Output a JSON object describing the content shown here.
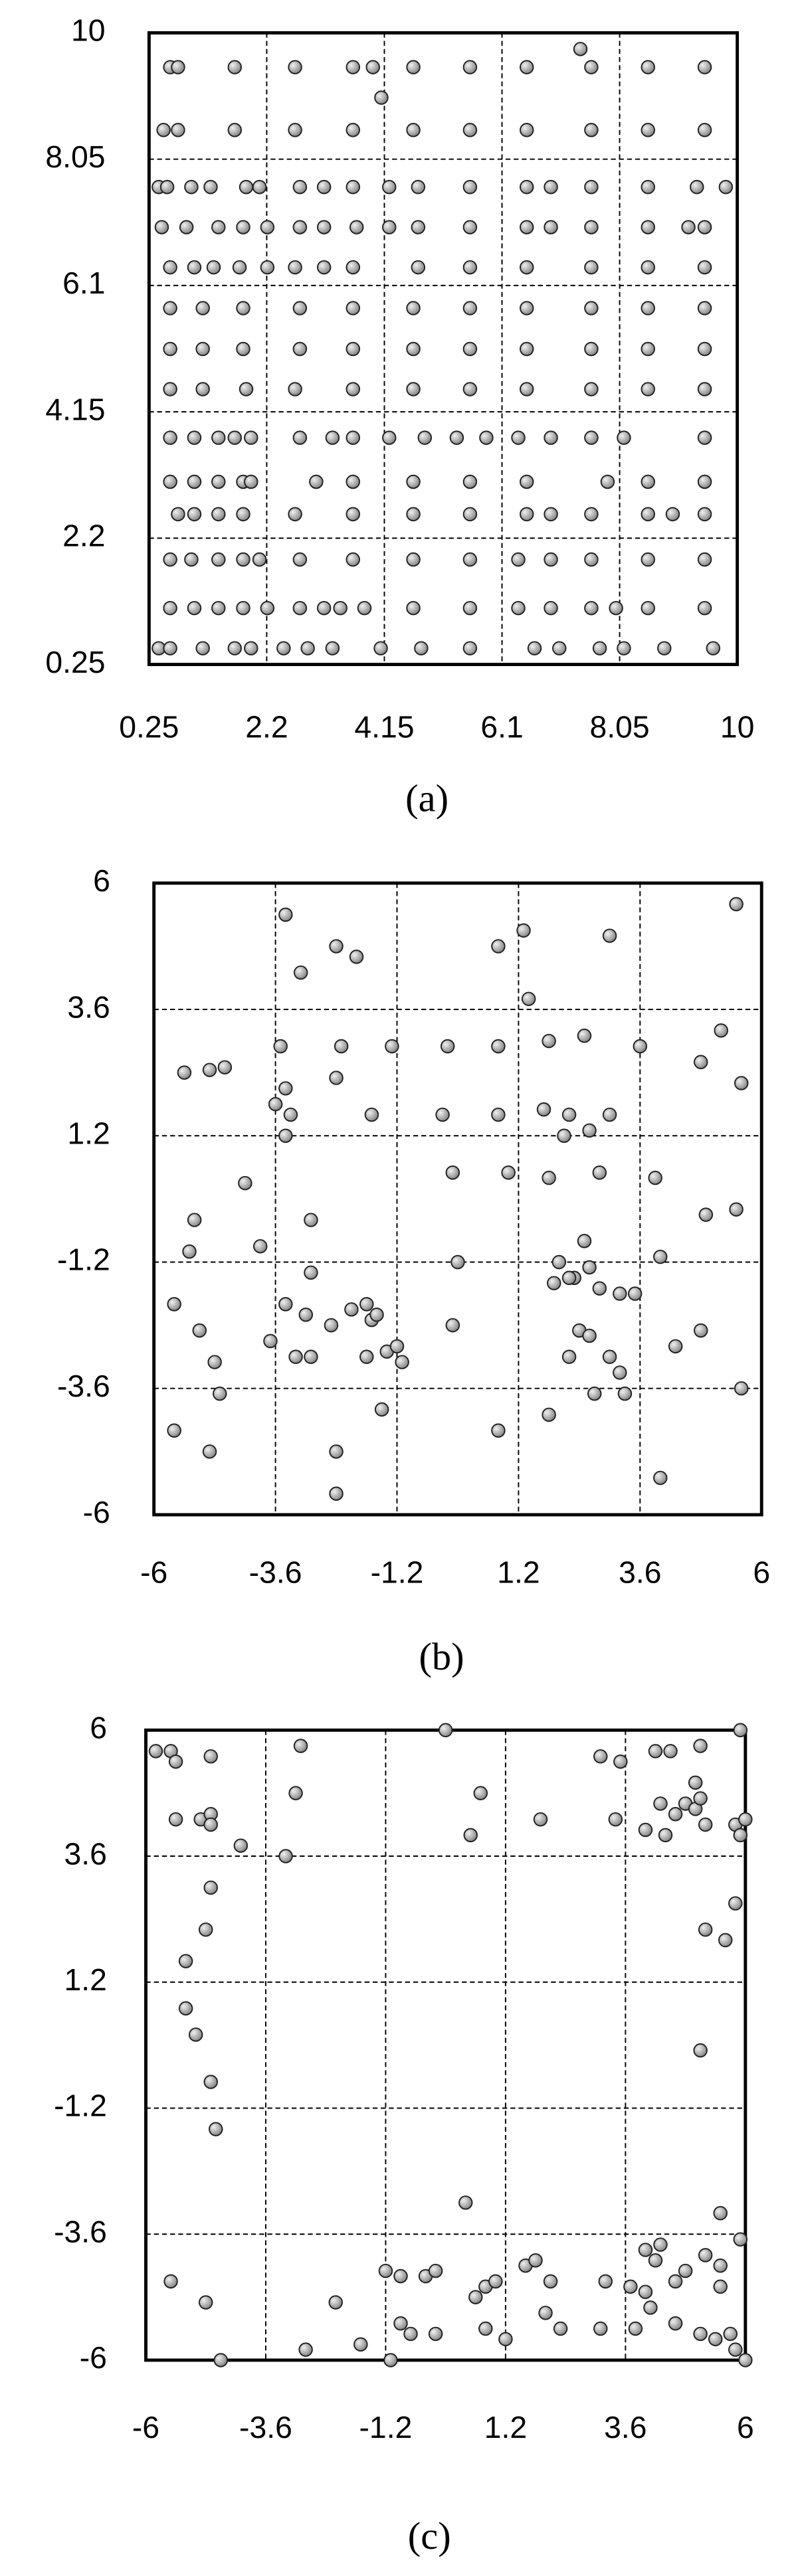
{
  "chart_data": [
    {
      "type": "scatter",
      "caption": "(a)",
      "xlim": [
        0.25,
        10
      ],
      "ylim": [
        0.25,
        10
      ],
      "xticks": [
        0.25,
        2.2,
        4.15,
        6.1,
        8.05,
        10
      ],
      "yticks": [
        0.25,
        2.2,
        4.15,
        6.1,
        8.05,
        10
      ],
      "grid": true,
      "color": "#a8a8a8",
      "x": [
        0.6,
        0.73,
        1.67,
        2.67,
        3.63,
        3.96,
        4.63,
        5.57,
        6.51,
        7.58,
        8.52,
        9.46,
        4.1,
        7.4,
        0.49,
        0.73,
        1.67,
        2.67,
        3.63,
        4.63,
        5.57,
        6.51,
        7.58,
        8.52,
        9.46,
        0.41,
        0.55,
        0.95,
        1.27,
        1.86,
        2.08,
        2.75,
        3.15,
        3.63,
        4.23,
        4.71,
        5.57,
        6.51,
        6.91,
        7.58,
        8.52,
        9.33,
        9.81,
        0.46,
        0.87,
        1.4,
        1.81,
        2.21,
        2.75,
        3.15,
        3.69,
        4.23,
        4.71,
        5.57,
        6.51,
        6.91,
        7.58,
        8.52,
        9.19,
        9.46,
        0.6,
        1.0,
        1.32,
        1.75,
        2.21,
        2.67,
        3.15,
        3.63,
        4.71,
        5.57,
        6.51,
        7.58,
        8.52,
        9.46,
        0.6,
        1.14,
        1.81,
        2.75,
        3.63,
        4.63,
        5.57,
        6.51,
        7.58,
        8.52,
        9.46,
        0.6,
        1.14,
        1.81,
        2.75,
        3.63,
        4.63,
        5.57,
        6.51,
        7.58,
        8.52,
        9.46,
        0.6,
        1.14,
        1.86,
        2.67,
        3.63,
        4.63,
        5.57,
        6.51,
        7.58,
        8.52,
        9.46,
        0.6,
        1.0,
        1.4,
        1.67,
        1.94,
        2.75,
        3.29,
        3.63,
        4.23,
        4.82,
        5.35,
        5.84,
        6.37,
        6.91,
        7.58,
        8.12,
        9.46,
        0.6,
        1.0,
        1.4,
        1.81,
        1.94,
        3.02,
        3.63,
        4.63,
        5.57,
        6.51,
        7.85,
        8.52,
        9.46,
        0.73,
        1.0,
        1.4,
        1.81,
        2.67,
        3.63,
        4.63,
        5.57,
        6.51,
        6.91,
        7.58,
        8.52,
        8.93,
        9.46,
        0.6,
        0.95,
        1.4,
        1.81,
        2.08,
        2.75,
        3.63,
        4.63,
        5.57,
        6.37,
        6.91,
        7.58,
        8.52,
        9.46,
        0.6,
        1.0,
        1.4,
        1.81,
        2.21,
        2.75,
        3.15,
        3.42,
        3.82,
        4.63,
        5.57,
        6.37,
        6.91,
        7.58,
        7.99,
        8.52,
        9.46,
        0.41,
        0.6,
        1.14,
        1.67,
        1.94,
        2.48,
        2.88,
        3.29,
        4.09,
        4.76,
        5.57,
        6.64,
        7.05,
        7.72,
        8.12,
        8.79,
        9.6
      ],
      "y": [
        9.47,
        9.47,
        9.47,
        9.47,
        9.47,
        9.47,
        9.47,
        9.47,
        9.47,
        9.47,
        9.47,
        9.47,
        9.0,
        9.75,
        8.5,
        8.5,
        8.5,
        8.5,
        8.5,
        8.5,
        8.5,
        8.5,
        8.5,
        8.5,
        8.5,
        7.62,
        7.62,
        7.62,
        7.62,
        7.62,
        7.62,
        7.62,
        7.62,
        7.62,
        7.62,
        7.62,
        7.62,
        7.62,
        7.62,
        7.62,
        7.62,
        7.62,
        7.62,
        7.0,
        7.0,
        7.0,
        7.0,
        7.0,
        7.0,
        7.0,
        7.0,
        7.0,
        7.0,
        7.0,
        7.0,
        7.0,
        7.0,
        7.0,
        7.0,
        7.0,
        6.38,
        6.38,
        6.38,
        6.38,
        6.38,
        6.38,
        6.38,
        6.38,
        6.38,
        6.38,
        6.38,
        6.38,
        6.38,
        6.38,
        5.75,
        5.75,
        5.75,
        5.75,
        5.75,
        5.75,
        5.75,
        5.75,
        5.75,
        5.75,
        5.75,
        5.12,
        5.12,
        5.12,
        5.12,
        5.12,
        5.12,
        5.12,
        5.12,
        5.12,
        5.12,
        5.12,
        4.5,
        4.5,
        4.5,
        4.5,
        4.5,
        4.5,
        4.5,
        4.5,
        4.5,
        4.5,
        4.5,
        3.75,
        3.75,
        3.75,
        3.75,
        3.75,
        3.75,
        3.75,
        3.75,
        3.75,
        3.75,
        3.75,
        3.75,
        3.75,
        3.75,
        3.75,
        3.75,
        3.75,
        3.07,
        3.07,
        3.07,
        3.07,
        3.07,
        3.07,
        3.07,
        3.07,
        3.07,
        3.07,
        3.07,
        3.07,
        3.07,
        2.57,
        2.57,
        2.57,
        2.57,
        2.57,
        2.57,
        2.57,
        2.57,
        2.57,
        2.57,
        2.57,
        2.57,
        2.57,
        2.57,
        1.87,
        1.87,
        1.87,
        1.87,
        1.87,
        1.87,
        1.87,
        1.87,
        1.87,
        1.87,
        1.87,
        1.87,
        1.87,
        1.87,
        1.12,
        1.12,
        1.12,
        1.12,
        1.12,
        1.12,
        1.12,
        1.12,
        1.12,
        1.12,
        1.12,
        1.12,
        1.12,
        1.12,
        1.12,
        1.12,
        1.12,
        0.5,
        0.5,
        0.5,
        0.5,
        0.5,
        0.5,
        0.5,
        0.5,
        0.5,
        0.5,
        0.5,
        0.5,
        0.5,
        0.5,
        0.5,
        0.5,
        0.5
      ]
    },
    {
      "type": "scatter",
      "caption": "(b)",
      "xlim": [
        -6,
        6
      ],
      "ylim": [
        -6,
        6
      ],
      "xticks": [
        -6,
        -3.6,
        -1.2,
        1.2,
        3.6,
        6
      ],
      "yticks": [
        -6,
        -3.6,
        -1.2,
        1.2,
        3.6,
        6
      ],
      "grid": true,
      "color": "#a8a8a8",
      "x": [
        -3.4,
        -2.4,
        -2.0,
        -3.1,
        0.8,
        1.3,
        3.0,
        5.5,
        1.4,
        -5.4,
        -4.9,
        -4.6,
        -3.5,
        -2.3,
        -1.3,
        -0.2,
        0.8,
        1.8,
        2.5,
        3.6,
        4.8,
        5.2,
        5.6,
        -3.4,
        -3.6,
        -3.3,
        -2.4,
        -1.7,
        -0.3,
        0.8,
        1.7,
        2.2,
        3.0,
        2.6,
        2.1,
        -3.4,
        -4.2,
        -5.2,
        -5.3,
        -3.9,
        -2.9,
        -2.9,
        0.0,
        -0.1,
        1.0,
        1.8,
        2.8,
        3.9,
        4.9,
        5.5,
        -5.6,
        -5.1,
        -4.8,
        -4.7,
        -3.7,
        -3.4,
        -3.2,
        -3.0,
        -2.5,
        -2.1,
        -1.8,
        -1.7,
        -1.4,
        -1.2,
        -1.1,
        -1.5,
        -1.8,
        -2.9,
        -1.6,
        2.3,
        2.0,
        2.6,
        2.8,
        3.2,
        3.5,
        4.0,
        4.3,
        4.8,
        5.6,
        2.4,
        2.6,
        3.0,
        3.2,
        3.3,
        2.7,
        2.2,
        1.8,
        0.8,
        -2.4,
        -2.4,
        -4.9,
        -5.6,
        4.0,
        -0.1,
        2.5,
        2.2,
        1.9
      ],
      "y": [
        5.4,
        4.8,
        4.6,
        4.3,
        4.8,
        5.1,
        5.0,
        5.6,
        3.8,
        2.4,
        2.45,
        2.5,
        2.9,
        2.9,
        2.9,
        2.9,
        2.9,
        3.0,
        3.1,
        2.9,
        2.6,
        3.2,
        2.2,
        2.1,
        1.8,
        1.6,
        2.3,
        1.6,
        1.6,
        1.6,
        1.7,
        1.6,
        1.6,
        1.3,
        1.2,
        1.2,
        0.3,
        -0.4,
        -1.0,
        -0.9,
        -0.4,
        -1.4,
        -1.2,
        0.5,
        0.5,
        0.4,
        0.5,
        0.4,
        -0.3,
        -0.2,
        -2.0,
        -2.5,
        -3.1,
        -3.7,
        -2.7,
        -2.0,
        -3.0,
        -2.2,
        -2.4,
        -2.1,
        -2.0,
        -2.3,
        -2.9,
        -2.8,
        -3.1,
        -4.0,
        -3.0,
        -3.0,
        -2.2,
        -1.5,
        -1.2,
        -1.3,
        -1.7,
        -1.8,
        -1.8,
        -1.1,
        -2.8,
        -2.5,
        -3.6,
        -2.5,
        -2.6,
        -3.0,
        -3.3,
        -3.7,
        -3.7,
        -3.0,
        -4.1,
        -4.4,
        -4.8,
        -5.6,
        -4.8,
        -4.4,
        -5.3,
        -2.4,
        -0.8,
        -1.5,
        -1.6
      ]
    },
    {
      "type": "scatter",
      "caption": "(c)",
      "xlim": [
        -6,
        6
      ],
      "ylim": [
        -6,
        6
      ],
      "xticks": [
        -6,
        -3.6,
        -1.2,
        1.2,
        3.6,
        6
      ],
      "yticks": [
        -6,
        -3.6,
        -1.2,
        1.2,
        3.6,
        6
      ],
      "grid": true,
      "color": "#a8a8a8",
      "x": [
        -5.8,
        -5.5,
        -5.4,
        -4.7,
        -2.9,
        0.0,
        3.1,
        3.5,
        4.2,
        4.5,
        5.1,
        5.9,
        -5.4,
        -4.9,
        -4.7,
        -4.7,
        -3.0,
        -4.1,
        -3.2,
        0.5,
        0.7,
        1.9,
        3.4,
        4.0,
        4.3,
        4.6,
        4.8,
        5.0,
        5.0,
        5.1,
        4.4,
        5.2,
        5.8,
        5.9,
        6.0,
        -4.7,
        -4.8,
        -5.2,
        -5.2,
        -5.0,
        -4.7,
        -4.6,
        5.2,
        5.6,
        5.8,
        5.1,
        0.4,
        5.5,
        -5.5,
        -4.8,
        -4.5,
        -2.8,
        -2.2,
        -1.7,
        -1.1,
        -1.2,
        -0.9,
        -0.4,
        -0.2,
        -0.9,
        -0.7,
        -0.2,
        0.6,
        0.8,
        0.8,
        1.2,
        1.0,
        1.6,
        1.8,
        2.1,
        2.0,
        2.3,
        3.2,
        3.1,
        3.8,
        3.7,
        4.0,
        4.2,
        4.0,
        4.1,
        4.6,
        4.8,
        4.6,
        5.1,
        5.4,
        5.2,
        5.5,
        5.5,
        5.7,
        5.8,
        6.0,
        5.9,
        4.3
      ],
      "y": [
        5.6,
        5.6,
        5.4,
        5.5,
        5.7,
        6.0,
        5.5,
        5.4,
        5.6,
        5.6,
        5.7,
        6.0,
        4.3,
        4.3,
        4.4,
        4.2,
        4.8,
        3.8,
        3.6,
        4.0,
        4.8,
        4.3,
        4.3,
        4.1,
        4.6,
        4.4,
        4.6,
        4.5,
        5.0,
        4.7,
        4.0,
        4.2,
        4.2,
        4.0,
        4.3,
        3.0,
        2.2,
        1.6,
        0.7,
        0.2,
        -0.7,
        -1.6,
        2.2,
        2.0,
        2.7,
        -0.1,
        -3.0,
        -3.2,
        -4.5,
        -4.9,
        -6.0,
        -5.8,
        -4.9,
        -5.7,
        -6.0,
        -4.3,
        -4.4,
        -4.4,
        -4.3,
        -5.3,
        -5.5,
        -5.5,
        -4.8,
        -4.6,
        -5.4,
        -5.6,
        -4.5,
        -4.2,
        -4.1,
        -4.5,
        -5.1,
        -5.4,
        -4.5,
        -5.4,
        -5.4,
        -4.6,
        -3.9,
        -4.1,
        -4.7,
        -5.0,
        -4.5,
        -4.3,
        -5.3,
        -5.5,
        -5.6,
        -4.0,
        -4.2,
        -4.6,
        -5.5,
        -5.8,
        -6.0,
        -3.7,
        -3.8
      ]
    }
  ]
}
